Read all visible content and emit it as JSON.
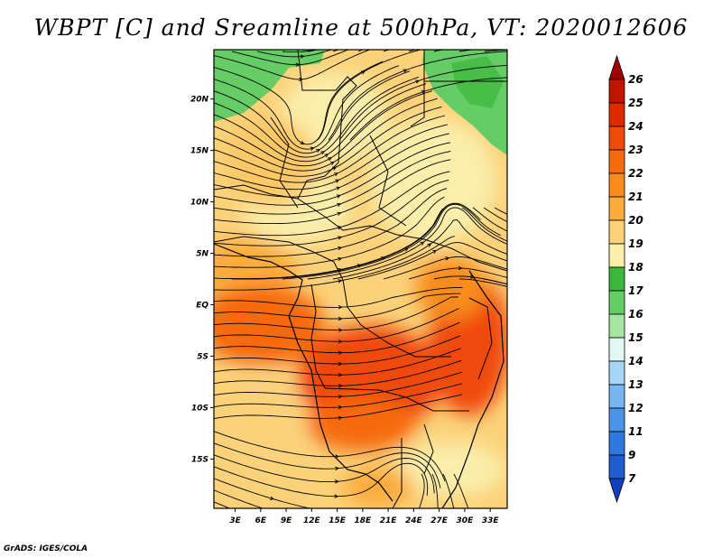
{
  "title": "WBPT [C] and Sreamline at 500hPa, VT: 2020012606",
  "credit": "GrADS: IGES/COLA",
  "map": {
    "lat_labels": [
      "20N",
      "15N",
      "10N",
      "5N",
      "EQ",
      "5S",
      "10S",
      "15S"
    ],
    "lat_values": [
      20,
      15,
      10,
      5,
      0,
      -5,
      -10,
      -15
    ],
    "lon_labels": [
      "3E",
      "6E",
      "9E",
      "12E",
      "15E",
      "18E",
      "21E",
      "24E",
      "27E",
      "30E",
      "33E"
    ],
    "lon_values": [
      3,
      6,
      9,
      12,
      15,
      18,
      21,
      24,
      27,
      30,
      33
    ],
    "lon_range": [
      0.5,
      35
    ],
    "lat_range": [
      -19.8,
      24.8
    ]
  },
  "colorbar": {
    "labels": [
      "26",
      "25",
      "24",
      "23",
      "22",
      "21",
      "20",
      "19",
      "18",
      "17",
      "16",
      "15",
      "14",
      "13",
      "12",
      "11",
      "9",
      "7"
    ],
    "colors": [
      "#a00000",
      "#c01400",
      "#de2a00",
      "#f04a0a",
      "#f66a10",
      "#f88c1e",
      "#fbac3c",
      "#fbd27a",
      "#faeeaa",
      "#3cb63c",
      "#66cc66",
      "#a6e6a0",
      "#e4f6f4",
      "#a8d4f6",
      "#78b6f0",
      "#4c94e6",
      "#3078e0",
      "#1e5cd0",
      "#1040c0"
    ]
  }
}
